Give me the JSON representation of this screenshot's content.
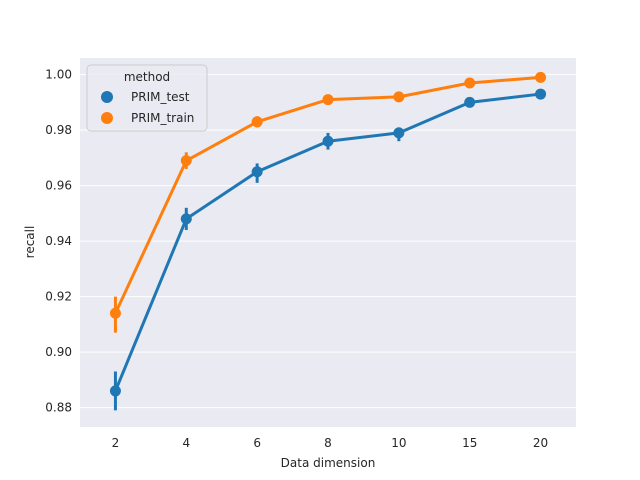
{
  "chart_data": {
    "type": "line",
    "style": "seaborn pointplot with error bars",
    "xlabel": "Data dimension",
    "ylabel": "recall",
    "categories": [
      "2",
      "4",
      "6",
      "8",
      "10",
      "15",
      "20"
    ],
    "ylim": [
      0.873,
      1.006
    ],
    "yticks": [
      0.88,
      0.9,
      0.92,
      0.94,
      0.96,
      0.98,
      1.0
    ],
    "ytick_labels": [
      "0.88",
      "0.90",
      "0.92",
      "0.94",
      "0.96",
      "0.98",
      "1.00"
    ],
    "grid": true,
    "background": "#eaeaf2",
    "legend": {
      "title": "method",
      "placement": "top-left"
    },
    "series": [
      {
        "name": "PRIM_test",
        "color": "#1f77b4",
        "values": [
          0.886,
          0.948,
          0.965,
          0.976,
          0.979,
          0.99,
          0.993
        ],
        "err_low": [
          0.879,
          0.944,
          0.961,
          0.973,
          0.976,
          0.989,
          0.992
        ],
        "err_high": [
          0.893,
          0.952,
          0.968,
          0.979,
          0.981,
          0.991,
          0.994
        ]
      },
      {
        "name": "PRIM_train",
        "color": "#ff7f0e",
        "values": [
          0.914,
          0.969,
          0.983,
          0.991,
          0.992,
          0.997,
          0.999
        ],
        "err_low": [
          0.907,
          0.966,
          0.981,
          0.99,
          0.991,
          0.996,
          0.998
        ],
        "err_high": [
          0.92,
          0.972,
          0.985,
          0.992,
          0.993,
          0.998,
          1.0
        ]
      }
    ]
  }
}
